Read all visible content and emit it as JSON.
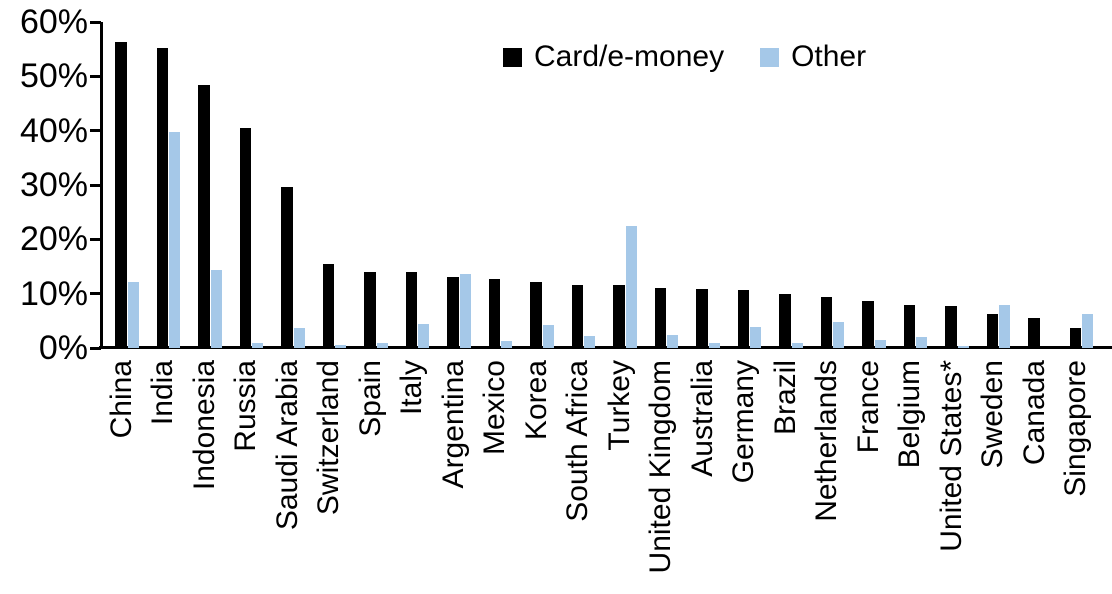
{
  "chart_data": {
    "type": "bar",
    "title": "",
    "xlabel": "",
    "ylabel": "",
    "ylim": [
      0,
      60
    ],
    "ytick_step": 10,
    "ytick_labels": [
      "0%",
      "10%",
      "20%",
      "30%",
      "40%",
      "50%",
      "60%"
    ],
    "grid": false,
    "legend_position": "top-center",
    "categories": [
      "China",
      "India",
      "Indonesia",
      "Russia",
      "Saudi Arabia",
      "Switzerland",
      "Spain",
      "Italy",
      "Argentina",
      "Mexico",
      "Korea",
      "South Africa",
      "Turkey",
      "United Kingdom",
      "Australia",
      "Germany",
      "Brazil",
      "Netherlands",
      "France",
      "Belgium",
      "United States*",
      "Sweden",
      "Canada",
      "Singapore"
    ],
    "series": [
      {
        "name": "Card/e-money",
        "color": "#000000",
        "values": [
          56.4,
          55.2,
          48.4,
          40.4,
          29.6,
          15.5,
          14.0,
          14.0,
          13.1,
          12.7,
          12.2,
          11.6,
          11.6,
          11.0,
          10.9,
          10.6,
          9.9,
          9.3,
          8.7,
          8.0,
          7.7,
          6.2,
          5.6,
          3.6
        ]
      },
      {
        "name": "Other",
        "color": "#A5C8E8",
        "values": [
          12.2,
          39.7,
          14.4,
          0.9,
          3.6,
          0.6,
          0.9,
          4.4,
          13.7,
          1.2,
          4.2,
          2.3,
          22.5,
          2.4,
          1.0,
          3.9,
          1.0,
          4.8,
          1.5,
          2.0,
          0.3,
          7.9,
          0.0,
          6.3
        ]
      }
    ],
    "axis_color": "#000000",
    "unit": "percent"
  }
}
